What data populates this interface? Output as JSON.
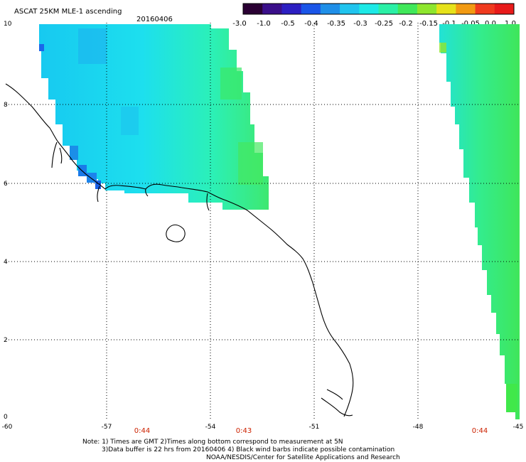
{
  "header": {
    "title": "ASCAT 25KM MLE-1 ascending",
    "date": "20160406"
  },
  "colorbar": {
    "labels": [
      "-3.0",
      "-1.0",
      "-0.5",
      "-0.4",
      "-0.35",
      "-0.3",
      "-0.25",
      "-0.2",
      "-0.15",
      "-0.1",
      "-0.05",
      "0.0",
      "1.0"
    ],
    "colors": [
      "#2a0033",
      "#3a0f8a",
      "#2c1fc2",
      "#1a55e8",
      "#1f8fe8",
      "#20c4ee",
      "#1de9e6",
      "#2bf0a6",
      "#40e85a",
      "#8ee62e",
      "#e6e21a",
      "#f29a12",
      "#f03a1e",
      "#e81a1a"
    ]
  },
  "axes": {
    "x_ticks": [
      "-60",
      "-57",
      "-54",
      "-51",
      "-48",
      "-45"
    ],
    "y_ticks": [
      "10",
      "8",
      "6",
      "4",
      "2",
      "0"
    ]
  },
  "time_labels": [
    "0:44",
    "0:43",
    "0:44"
  ],
  "footer": {
    "line1": "Note: 1) Times are GMT 2)Times along bottom correspond to measurement at 5N",
    "line2": "3)Data buffer is 22 hrs from 20160406 4) Black wind barbs indicate possible contamination",
    "line3": "NOAA/NESDIS/Center for Satellite Applications and Research"
  }
}
